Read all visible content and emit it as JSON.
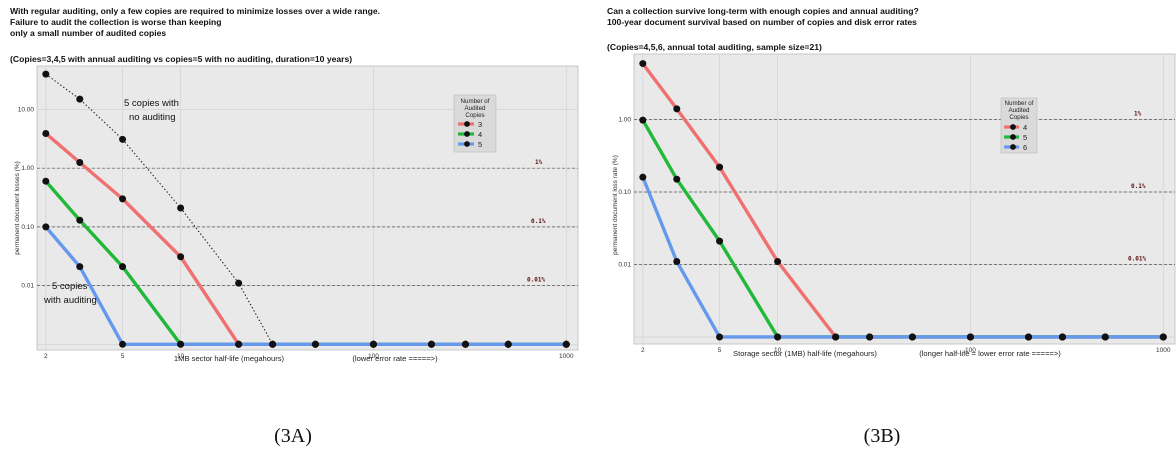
{
  "charts": [
    {
      "caption": "(3A)",
      "title_lines": [
        "With regular auditing, only a few copies are required to minimize losses over a wide range.",
        "Failure to audit the collection is worse than keeping",
        "only a small number of audited copies"
      ],
      "subtitle": "(Copies=3,4,5 with annual auditing vs copies=5 with no auditing, duration=10 years)",
      "ylabel": "permanent document losses (%)",
      "xlabel": "1MB sector half-life (megahours)",
      "xnote": "(lower error rate =====>)",
      "x_ticks": [
        "2",
        "5",
        "10",
        "100",
        "1000"
      ],
      "y_ticks": [
        "10.00",
        "1.00",
        "0.10",
        "0.01"
      ],
      "ref_labels": [
        "1%",
        "0.1%",
        "0.01%"
      ],
      "legend_title_lines": [
        "Number of",
        "Audited",
        "Copies"
      ],
      "legend_items": [
        "3",
        "4",
        "5"
      ],
      "annotations": [
        "5 copies with",
        "no auditing",
        "5 copies",
        "with auditing"
      ]
    },
    {
      "caption": "(3B)",
      "title_lines": [
        "Can a collection survive long-term with enough copies and annual auditing?",
        " 100-year document survival based on number of copies and disk error rates"
      ],
      "subtitle": "(Copies=4,5,6, annual total auditing, sample size=21)",
      "ylabel": "permanent document loss rate (%)",
      "xlabel": "Storage sector (1MB) half-life (megahours)",
      "xnote": "(longer half-life = lower error rate =====>)",
      "x_ticks": [
        "2",
        "5",
        "10",
        "100",
        "1000"
      ],
      "y_ticks": [
        "1.00",
        "0.10",
        "0.01"
      ],
      "ref_labels": [
        "1%",
        "0.1%",
        "0.01%"
      ],
      "legend_title_lines": [
        "Number of",
        "Audited",
        "Copies"
      ],
      "legend_items": [
        "4",
        "5",
        "6"
      ],
      "annotations": []
    }
  ],
  "chart_data": [
    {
      "type": "line",
      "x_scale": "log",
      "y_scale": "log",
      "xlim": [
        1.8,
        1150
      ],
      "ylim": [
        0.0008,
        55
      ],
      "x": [
        2,
        3,
        5,
        10,
        20,
        30,
        50,
        100,
        200,
        300,
        500,
        1000
      ],
      "series": [
        {
          "name": "3",
          "color": "#f07070",
          "values": [
            3.9,
            1.25,
            0.3,
            0.031,
            0.001,
            0.001,
            0.001,
            0.001,
            0.001,
            0.001,
            0.001,
            0.001
          ]
        },
        {
          "name": "4",
          "color": "#22b838",
          "values": [
            0.6,
            0.13,
            0.021,
            0.001,
            0.001,
            0.001,
            0.001,
            0.001,
            0.001,
            0.001,
            0.001,
            0.001
          ]
        },
        {
          "name": "5",
          "color": "#6699ee",
          "values": [
            0.1,
            0.021,
            0.001,
            0.001,
            0.001,
            0.001,
            0.001,
            0.001,
            0.001,
            0.001,
            0.001,
            0.001
          ]
        }
      ],
      "dotted_series": {
        "values": [
          40,
          15,
          3.1,
          0.21,
          0.011,
          0.001,
          0.001,
          0.001,
          0.001,
          0.001,
          0.001,
          0.001
        ]
      },
      "reference_lines": [
        1.0,
        0.1,
        0.01
      ],
      "legend": "upper right"
    },
    {
      "type": "line",
      "x_scale": "log",
      "y_scale": "log",
      "xlim": [
        1.8,
        1150
      ],
      "ylim": [
        0.0008,
        8
      ],
      "x": [
        2,
        3,
        5,
        10,
        20,
        30,
        50,
        100,
        200,
        300,
        500,
        1000
      ],
      "series": [
        {
          "name": "4",
          "color": "#f07070",
          "values": [
            5.9,
            1.4,
            0.22,
            0.011,
            0.001,
            0.001,
            0.001,
            0.001,
            0.001,
            0.001,
            0.001,
            0.001
          ]
        },
        {
          "name": "5",
          "color": "#22b838",
          "values": [
            0.98,
            0.15,
            0.021,
            0.001,
            0.001,
            0.001,
            0.001,
            0.001,
            0.001,
            0.001,
            0.001,
            0.001
          ]
        },
        {
          "name": "6",
          "color": "#6699ee",
          "values": [
            0.16,
            0.011,
            0.001,
            0.001,
            0.001,
            0.001,
            0.001,
            0.001,
            0.001,
            0.001,
            0.001,
            0.001
          ]
        }
      ],
      "reference_lines": [
        1.0,
        0.1,
        0.01
      ],
      "legend": "upper right"
    }
  ]
}
